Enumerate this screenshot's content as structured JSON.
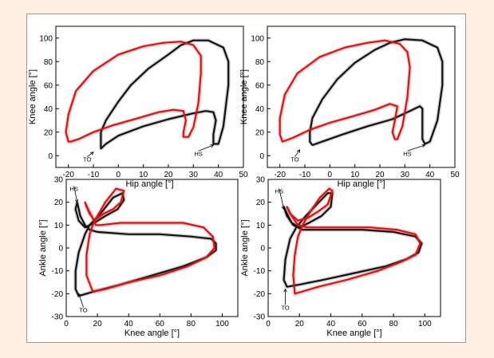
{
  "colors": {
    "series_1": "#111111",
    "series_2": "#e01010",
    "background": "#fdeee4"
  },
  "chart_data": [
    {
      "type": "line",
      "xlabel": "Hip angle [°]",
      "ylabel": "Knee angle [°]",
      "xlim": [
        -25,
        50
      ],
      "ylim": [
        -10,
        110
      ],
      "xticks": [
        "-20",
        "-10",
        "0",
        "10",
        "20",
        "30",
        "40",
        "50"
      ],
      "yticks": [
        "0",
        "20",
        "40",
        "60",
        "80",
        "100"
      ],
      "annotations": [
        {
          "text": "TO",
          "x": -10,
          "y": 3,
          "tx": -12.5,
          "ty": -3
        },
        {
          "text": "HS",
          "x": 38,
          "y": 9,
          "tx": 32,
          "ty": 2
        }
      ],
      "series": [
        {
          "color": "#111111",
          "points": [
            [
              -7,
              6
            ],
            [
              -5,
              10
            ],
            [
              0,
              17
            ],
            [
              10,
              25
            ],
            [
              20,
              31
            ],
            [
              30,
              36
            ],
            [
              35,
              38
            ],
            [
              38,
              37
            ],
            [
              39,
              30
            ],
            [
              38,
              18
            ],
            [
              38,
              10
            ],
            [
              40,
              10
            ],
            [
              42,
              25
            ],
            [
              44,
              60
            ],
            [
              44,
              80
            ],
            [
              42,
              92
            ],
            [
              36,
              98
            ],
            [
              30,
              98
            ],
            [
              25,
              94
            ],
            [
              20,
              86
            ],
            [
              12,
              74
            ],
            [
              5,
              60
            ],
            [
              0,
              46
            ],
            [
              -5,
              30
            ],
            [
              -7,
              20
            ],
            [
              -7,
              10
            ],
            [
              -7,
              6
            ]
          ]
        },
        {
          "color": "#e01010",
          "points": [
            [
              -19,
              12
            ],
            [
              -16,
              14
            ],
            [
              -10,
              20
            ],
            [
              -2,
              26
            ],
            [
              8,
              32
            ],
            [
              16,
              37
            ],
            [
              22,
              39
            ],
            [
              26,
              38
            ],
            [
              27,
              30
            ],
            [
              26,
              20
            ],
            [
              26,
              16
            ],
            [
              28,
              16
            ],
            [
              30,
              24
            ],
            [
              32,
              45
            ],
            [
              33,
              70
            ],
            [
              33,
              85
            ],
            [
              30,
              94
            ],
            [
              25,
              97
            ],
            [
              18,
              96
            ],
            [
              10,
              93
            ],
            [
              0,
              86
            ],
            [
              -10,
              72
            ],
            [
              -17,
              55
            ],
            [
              -20,
              35
            ],
            [
              -21,
              20
            ],
            [
              -20,
              12
            ],
            [
              -19,
              12
            ]
          ]
        }
      ]
    },
    {
      "type": "line",
      "xlabel": "Hip angle [°]",
      "ylabel": "Knee angle [°]",
      "xlim": [
        -25,
        50
      ],
      "ylim": [
        -10,
        110
      ],
      "xticks": [
        "-20",
        "-10",
        "0",
        "10",
        "20",
        "30",
        "40",
        "50"
      ],
      "yticks": [
        "0",
        "20",
        "40",
        "60",
        "80",
        "100"
      ],
      "annotations": [
        {
          "text": "TO",
          "x": -12,
          "y": 5,
          "tx": -14,
          "ty": -3
        },
        {
          "text": "HS",
          "x": 38,
          "y": 9,
          "tx": 31,
          "ty": 2
        }
      ],
      "series": [
        {
          "color": "#111111",
          "points": [
            [
              -7,
              9
            ],
            [
              -3,
              12
            ],
            [
              5,
              18
            ],
            [
              15,
              25
            ],
            [
              25,
              31
            ],
            [
              32,
              38
            ],
            [
              36,
              42
            ],
            [
              37,
              40
            ],
            [
              37,
              25
            ],
            [
              37,
              14
            ],
            [
              38,
              10
            ],
            [
              40,
              12
            ],
            [
              43,
              30
            ],
            [
              45,
              60
            ],
            [
              45,
              80
            ],
            [
              43,
              92
            ],
            [
              37,
              98
            ],
            [
              30,
              99
            ],
            [
              24,
              96
            ],
            [
              18,
              90
            ],
            [
              10,
              79
            ],
            [
              3,
              65
            ],
            [
              -3,
              48
            ],
            [
              -7,
              32
            ],
            [
              -8,
              20
            ],
            [
              -8,
              12
            ],
            [
              -7,
              9
            ]
          ]
        },
        {
          "color": "#e01010",
          "points": [
            [
              -19,
              12
            ],
            [
              -15,
              15
            ],
            [
              -8,
              22
            ],
            [
              0,
              28
            ],
            [
              10,
              34
            ],
            [
              18,
              39
            ],
            [
              24,
              44
            ],
            [
              27,
              42
            ],
            [
              26,
              30
            ],
            [
              25,
              20
            ],
            [
              26,
              14
            ],
            [
              27,
              14
            ],
            [
              29,
              25
            ],
            [
              31,
              50
            ],
            [
              32,
              75
            ],
            [
              31,
              88
            ],
            [
              28,
              95
            ],
            [
              22,
              98
            ],
            [
              15,
              96
            ],
            [
              6,
              92
            ],
            [
              -4,
              84
            ],
            [
              -13,
              70
            ],
            [
              -18,
              52
            ],
            [
              -20,
              32
            ],
            [
              -20,
              18
            ],
            [
              -19,
              12
            ]
          ]
        }
      ]
    },
    {
      "type": "line",
      "xlabel": "Knee angle [°]",
      "ylabel": "Ankle angle [°]",
      "xlim": [
        0,
        110
      ],
      "ylim": [
        -30,
        30
      ],
      "xticks": [
        "0",
        "20",
        "40",
        "60",
        "80",
        "100"
      ],
      "yticks": [
        "-30",
        "-20",
        "-10",
        "0",
        "10",
        "20",
        "30"
      ],
      "annotations": [
        {
          "text": "HS",
          "x": 7,
          "y": 20,
          "tx": 5,
          "ty": 26
        },
        {
          "text": "TO",
          "x": 8,
          "y": -20,
          "tx": 11,
          "ty": -27
        }
      ],
      "series": [
        {
          "color": "#111111",
          "points": [
            [
              7,
              20
            ],
            [
              9,
              14
            ],
            [
              12,
              10
            ],
            [
              15,
              8
            ],
            [
              20,
              7
            ],
            [
              40,
              6
            ],
            [
              60,
              6
            ],
            [
              80,
              5
            ],
            [
              93,
              4
            ],
            [
              96,
              2
            ],
            [
              96,
              -1
            ],
            [
              90,
              -4
            ],
            [
              75,
              -8
            ],
            [
              55,
              -12
            ],
            [
              35,
              -16
            ],
            [
              18,
              -19
            ],
            [
              8,
              -21
            ],
            [
              6,
              -18
            ],
            [
              6,
              -10
            ],
            [
              8,
              -2
            ],
            [
              12,
              6
            ],
            [
              15,
              10
            ],
            [
              22,
              15
            ],
            [
              30,
              22
            ],
            [
              36,
              24
            ],
            [
              37,
              21
            ],
            [
              33,
              17
            ],
            [
              25,
              14
            ],
            [
              18,
              11
            ],
            [
              12,
              9
            ],
            [
              8,
              12
            ],
            [
              6,
              17
            ],
            [
              7,
              20
            ]
          ]
        },
        {
          "color": "#e01010",
          "points": [
            [
              12,
              20
            ],
            [
              14,
              17
            ],
            [
              17,
              13
            ],
            [
              19,
              10
            ],
            [
              22,
              10
            ],
            [
              35,
              11
            ],
            [
              55,
              11
            ],
            [
              75,
              11
            ],
            [
              88,
              9
            ],
            [
              94,
              5
            ],
            [
              95,
              0
            ],
            [
              90,
              -4
            ],
            [
              78,
              -8
            ],
            [
              60,
              -12
            ],
            [
              40,
              -15
            ],
            [
              25,
              -18
            ],
            [
              17,
              -19
            ],
            [
              13,
              -12
            ],
            [
              13,
              -3
            ],
            [
              15,
              6
            ],
            [
              17,
              10
            ],
            [
              20,
              14
            ],
            [
              25,
              20
            ],
            [
              32,
              26
            ],
            [
              37,
              25
            ],
            [
              35,
              20
            ],
            [
              30,
              17
            ],
            [
              24,
              15
            ],
            [
              18,
              12
            ],
            [
              15,
              15
            ],
            [
              13,
              18
            ],
            [
              12,
              20
            ]
          ]
        }
      ]
    },
    {
      "type": "line",
      "xlabel": "Knee angle [°]",
      "ylabel": "Ankle angle [°]",
      "xlim": [
        0,
        110
      ],
      "ylim": [
        -30,
        30
      ],
      "xticks": [
        "0",
        "20",
        "40",
        "60",
        "80",
        "100"
      ],
      "yticks": [
        "-30",
        "-20",
        "-10",
        "0",
        "10",
        "20",
        "30"
      ],
      "annotations": [
        {
          "text": "HS",
          "x": 10,
          "y": 17,
          "tx": 7,
          "ty": 25
        },
        {
          "text": "TO",
          "x": 11,
          "y": -18,
          "tx": 11,
          "ty": -26
        }
      ],
      "series": [
        {
          "color": "#111111",
          "points": [
            [
              10,
              18
            ],
            [
              12,
              14
            ],
            [
              16,
              10
            ],
            [
              22,
              8
            ],
            [
              40,
              8
            ],
            [
              60,
              8
            ],
            [
              80,
              7
            ],
            [
              94,
              5
            ],
            [
              98,
              2
            ],
            [
              96,
              -2
            ],
            [
              88,
              -5
            ],
            [
              75,
              -8
            ],
            [
              55,
              -11
            ],
            [
              35,
              -14
            ],
            [
              20,
              -16
            ],
            [
              12,
              -17
            ],
            [
              10,
              -14
            ],
            [
              11,
              -5
            ],
            [
              14,
              4
            ],
            [
              18,
              9
            ],
            [
              24,
              14
            ],
            [
              31,
              19
            ],
            [
              38,
              24
            ],
            [
              41,
              24
            ],
            [
              40,
              18
            ],
            [
              34,
              14
            ],
            [
              26,
              11
            ],
            [
              20,
              9
            ],
            [
              15,
              11
            ],
            [
              12,
              15
            ],
            [
              10,
              18
            ]
          ]
        },
        {
          "color": "#e01010",
          "points": [
            [
              12,
              18
            ],
            [
              15,
              14
            ],
            [
              19,
              10
            ],
            [
              25,
              9
            ],
            [
              45,
              9
            ],
            [
              65,
              9
            ],
            [
              82,
              8
            ],
            [
              94,
              6
            ],
            [
              97,
              2
            ],
            [
              94,
              -3
            ],
            [
              85,
              -6
            ],
            [
              70,
              -10
            ],
            [
              50,
              -14
            ],
            [
              32,
              -17
            ],
            [
              22,
              -19
            ],
            [
              17,
              -20
            ],
            [
              16,
              -12
            ],
            [
              17,
              -3
            ],
            [
              19,
              5
            ],
            [
              22,
              10
            ],
            [
              27,
              16
            ],
            [
              33,
              22
            ],
            [
              39,
              26
            ],
            [
              41,
              25
            ],
            [
              38,
              19
            ],
            [
              32,
              16
            ],
            [
              25,
              13
            ],
            [
              19,
              12
            ],
            [
              14,
              15
            ],
            [
              12,
              18
            ]
          ]
        }
      ]
    }
  ]
}
